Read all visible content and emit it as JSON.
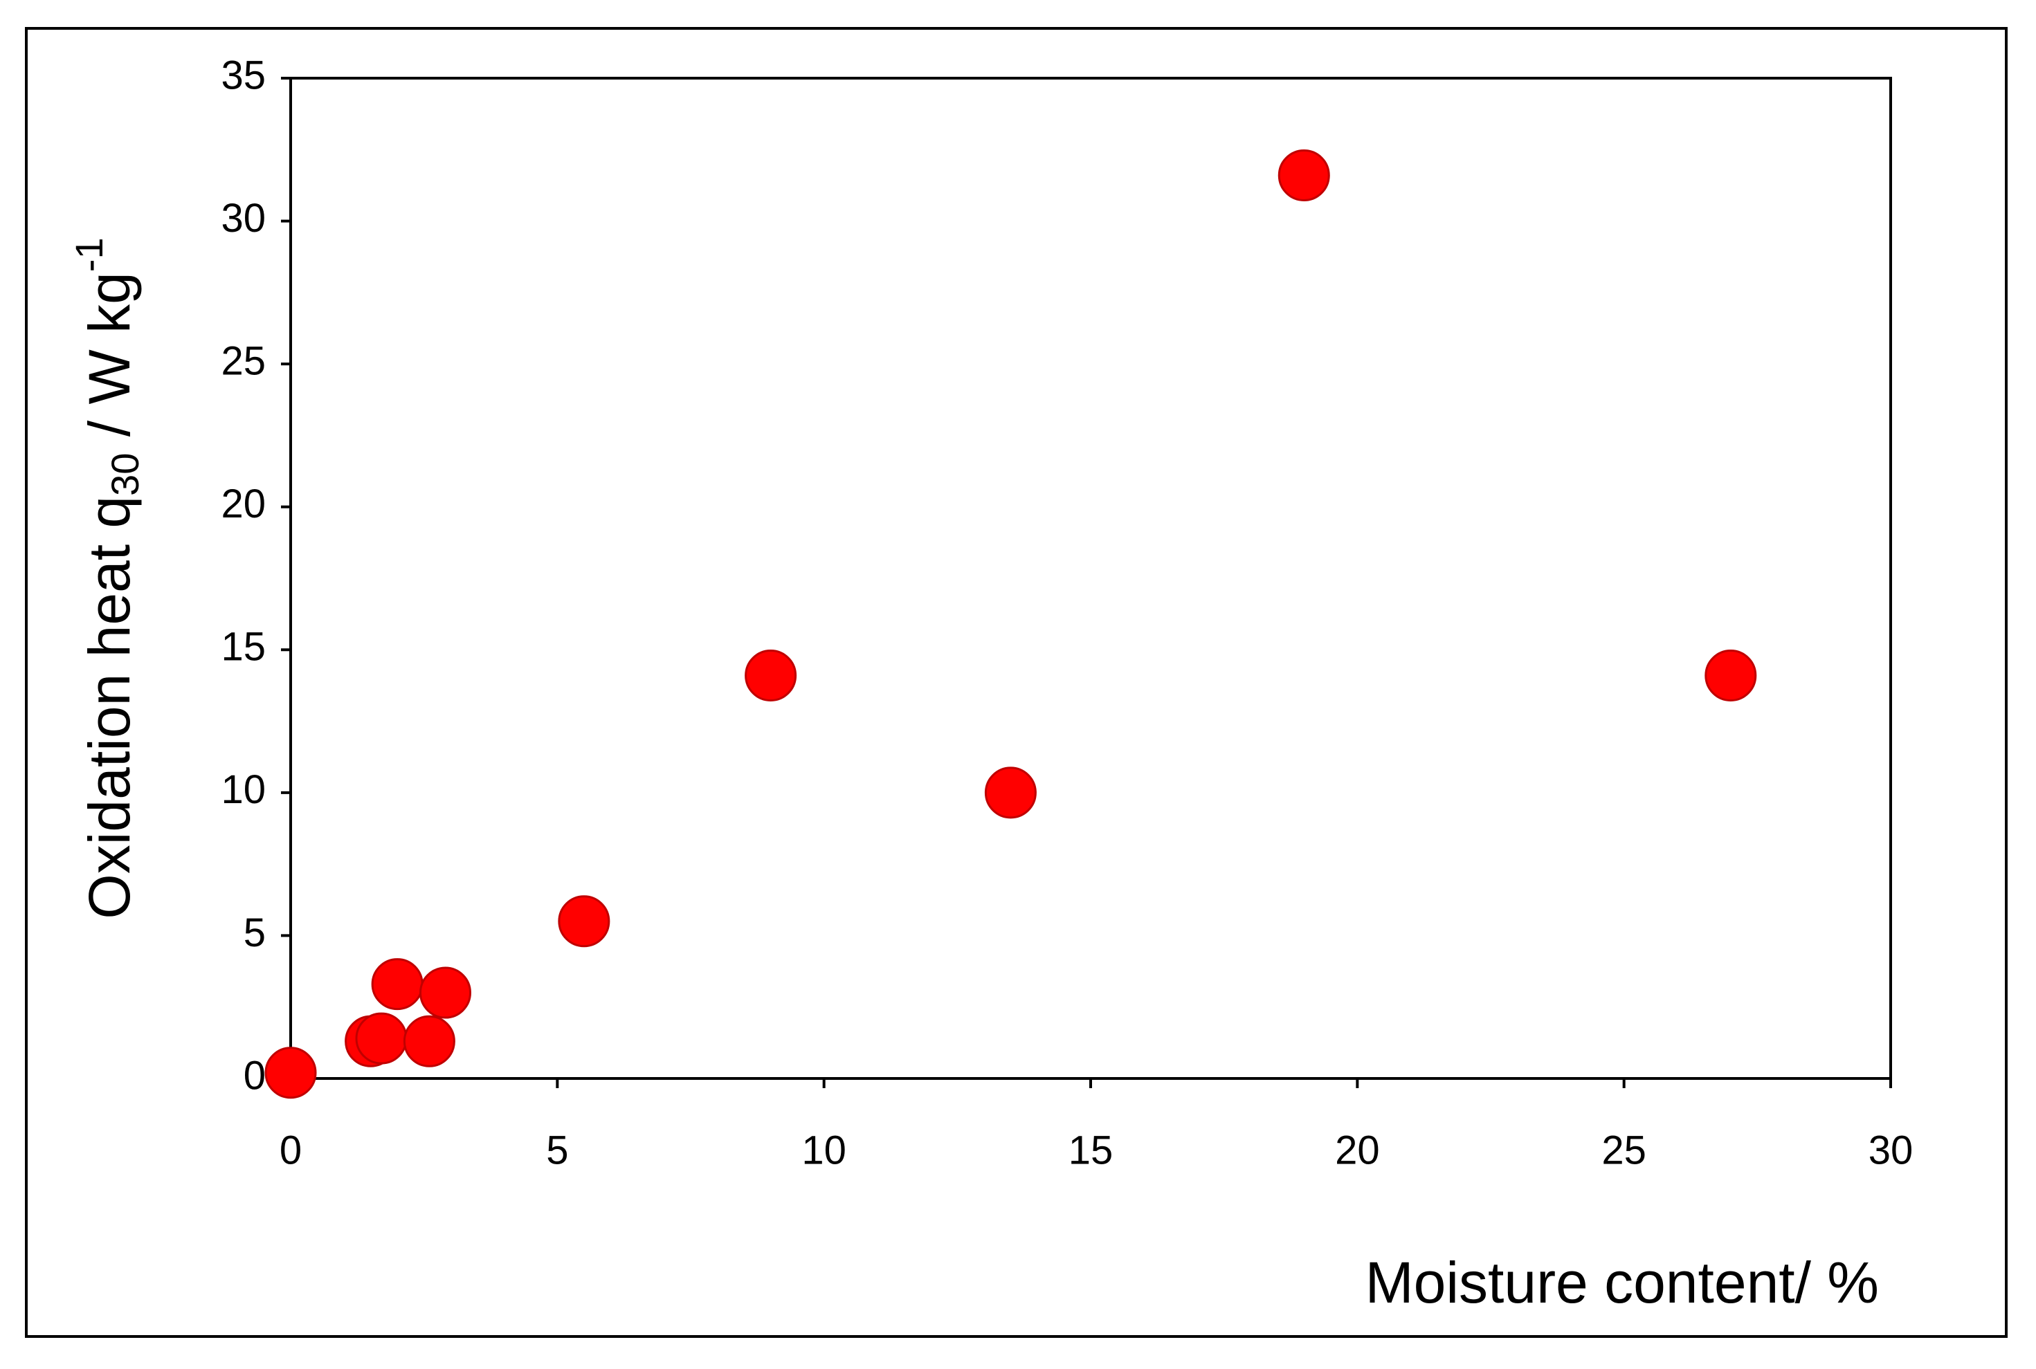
{
  "chart_data": {
    "type": "scatter",
    "xlabel": "Moisture content/ %",
    "ylabel": {
      "text": "Oxidation heat q",
      "subscript": "30",
      "text2": " / W kg",
      "superscript": "-1"
    },
    "series": [
      {
        "color": "#ff0000",
        "x": [
          0,
          1.5,
          1.7,
          2,
          2.6,
          2.9,
          5.5,
          9,
          13.5,
          19,
          27
        ],
        "values": [
          0.2,
          1.3,
          1.4,
          3.3,
          1.3,
          3.0,
          5.5,
          14.1,
          10,
          31.6,
          14.1
        ]
      }
    ],
    "xlim": [
      0,
      30
    ],
    "xticks": [
      0,
      5,
      10,
      15,
      20,
      25,
      30
    ],
    "ylim": [
      0,
      35
    ],
    "yticks": [
      0,
      5,
      10,
      15,
      20,
      25,
      30,
      35
    ],
    "grid": false
  }
}
